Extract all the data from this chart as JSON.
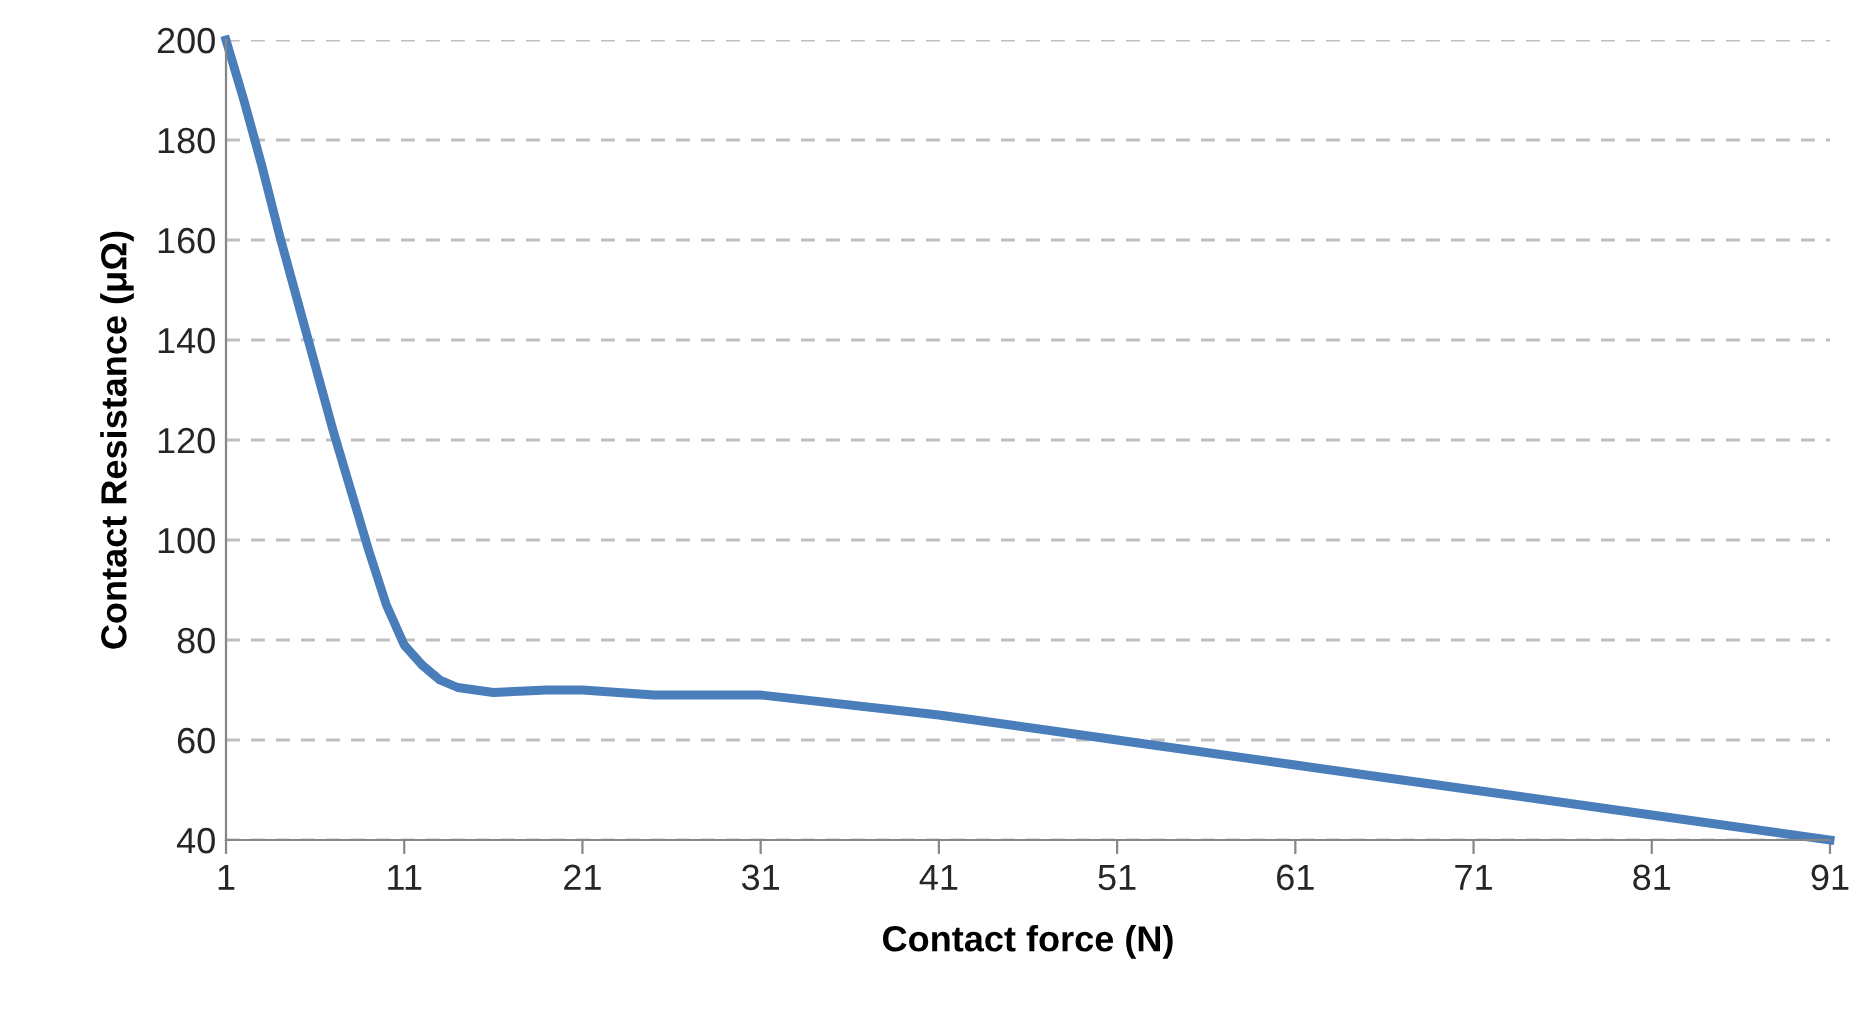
{
  "chart_data": {
    "type": "line",
    "xlabel": "Contact force (N)",
    "ylabel": "Contact Resistance (μΩ)",
    "x": [
      1,
      2,
      3,
      4,
      5,
      6,
      7,
      8,
      9,
      10,
      11,
      12,
      13,
      14,
      16,
      19,
      21,
      25,
      31,
      41,
      51,
      61,
      71,
      81,
      91
    ],
    "series": [
      {
        "color": "#4a7ebb",
        "values": [
          200,
          188,
          175,
          161,
          148,
          135,
          122,
          110,
          98,
          87,
          79,
          75,
          72,
          70.5,
          69.5,
          70,
          70,
          69,
          69,
          65,
          60,
          55,
          50,
          45,
          40
        ]
      }
    ],
    "xlim": [
      1,
      91
    ],
    "xticks": [
      1,
      11,
      21,
      31,
      41,
      51,
      61,
      71,
      81,
      91
    ],
    "ylim": [
      40,
      200
    ],
    "yticks": [
      40,
      60,
      80,
      100,
      120,
      140,
      160,
      180,
      200
    ],
    "grid": "y",
    "legend": false,
    "marker": "none",
    "line_style": "solid"
  }
}
